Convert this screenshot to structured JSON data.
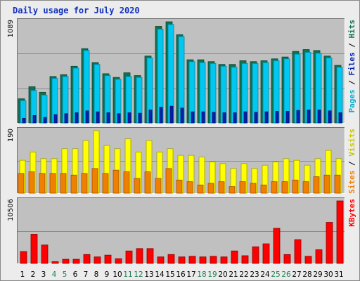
{
  "chart_data": [
    {
      "type": "bar",
      "title": "Daily usage for July 2020",
      "x": [
        "1",
        "2",
        "3",
        "4",
        "5",
        "6",
        "7",
        "8",
        "9",
        "10",
        "11",
        "12",
        "13",
        "14",
        "15",
        "16",
        "17",
        "18",
        "19",
        "20",
        "21",
        "22",
        "23",
        "24",
        "25",
        "26",
        "27",
        "28",
        "29",
        "30",
        "31"
      ],
      "weekend_days": [
        "4",
        "5",
        "11",
        "12",
        "18",
        "19",
        "25",
        "26"
      ],
      "ymax_label": "1089",
      "ylim": [
        0,
        1089
      ],
      "right_label": {
        "parts": [
          "Pages",
          "Files",
          "Hits"
        ],
        "separator": " / "
      },
      "series": [
        {
          "name": "Hits",
          "color": "#107050",
          "values": [
            260,
            390,
            330,
            500,
            520,
            610,
            800,
            650,
            530,
            490,
            540,
            510,
            720,
            1040,
            1089,
            950,
            680,
            680,
            660,
            630,
            630,
            670,
            660,
            670,
            690,
            710,
            770,
            790,
            780,
            720,
            620
          ]
        },
        {
          "name": "Files",
          "color": "#00c8f0",
          "values": [
            240,
            350,
            300,
            480,
            500,
            590,
            780,
            630,
            510,
            470,
            500,
            490,
            700,
            1010,
            1060,
            930,
            660,
            650,
            640,
            610,
            600,
            640,
            640,
            650,
            670,
            690,
            740,
            760,
            750,
            700,
            600
          ]
        },
        {
          "name": "Pages",
          "color": "#0020b0",
          "values": [
            50,
            80,
            60,
            90,
            100,
            110,
            130,
            120,
            110,
            100,
            110,
            105,
            140,
            170,
            180,
            160,
            120,
            120,
            115,
            110,
            110,
            120,
            115,
            120,
            125,
            125,
            135,
            140,
            140,
            130,
            110
          ]
        }
      ]
    },
    {
      "type": "bar",
      "ymax_label": "190",
      "ylim": [
        0,
        190
      ],
      "right_label": {
        "parts": [
          "Sites",
          "Visits"
        ],
        "separator": " / "
      },
      "series": [
        {
          "name": "Visits",
          "color": "#ffff00",
          "values": [
            100,
            125,
            105,
            105,
            135,
            135,
            160,
            190,
            145,
            135,
            165,
            125,
            160,
            125,
            135,
            115,
            115,
            110,
            95,
            90,
            75,
            90,
            75,
            85,
            95,
            105,
            100,
            85,
            105,
            130,
            105
          ]
        },
        {
          "name": "Sites",
          "color": "#f08000",
          "values": [
            60,
            65,
            60,
            60,
            60,
            55,
            60,
            75,
            60,
            70,
            65,
            45,
            65,
            45,
            75,
            40,
            35,
            25,
            30,
            35,
            20,
            35,
            30,
            25,
            35,
            35,
            40,
            35,
            50,
            55,
            55
          ]
        }
      ]
    },
    {
      "type": "bar",
      "ymax_label": "10506",
      "ylim": [
        0,
        10506
      ],
      "right_label": {
        "parts": [
          "KBytes"
        ],
        "separator": ""
      },
      "series": [
        {
          "name": "KBytes",
          "color": "#ff0000",
          "values": [
            2000,
            4900,
            3100,
            300,
            700,
            700,
            1500,
            1100,
            1400,
            800,
            2100,
            2500,
            2500,
            1100,
            1500,
            1100,
            1200,
            1100,
            1200,
            1100,
            2100,
            1300,
            2800,
            3300,
            5900,
            1500,
            4000,
            1200,
            2300,
            6900,
            10506
          ]
        }
      ]
    }
  ]
}
